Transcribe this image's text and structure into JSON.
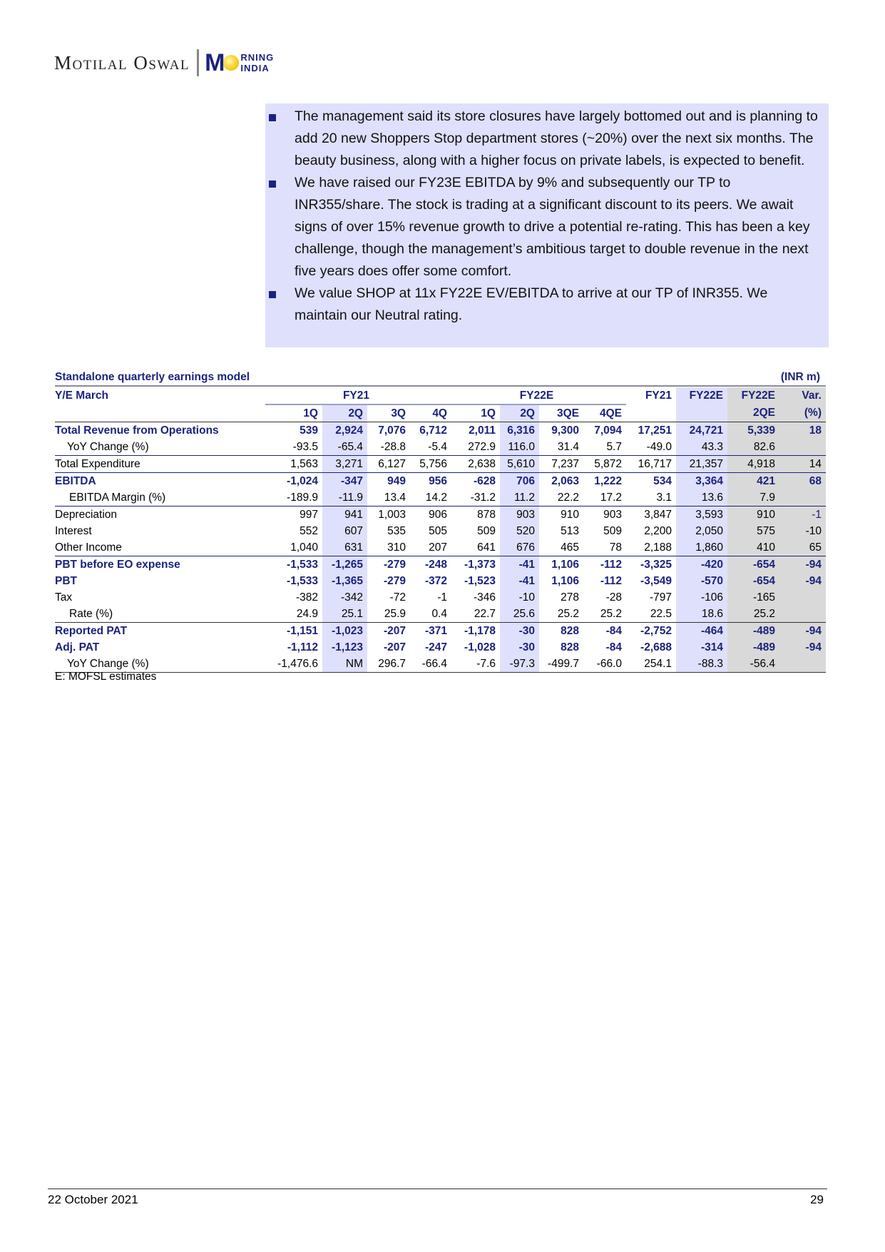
{
  "header": {
    "brand": "Motilal Oswal",
    "logo_main": "M",
    "logo_top": "RNING",
    "logo_bottom": "INDIA"
  },
  "bullets": [
    "The management said its store closures have largely bottomed out and is planning to add 20 new Shoppers Stop department stores (~20%) over the next six months. The beauty business, along with a higher focus on private labels, is expected to benefit.",
    "We have raised our FY23E EBITDA by 9% and subsequently our TP to INR355/share. The stock is trading at a significant discount to its peers. We await signs of over 15% revenue growth to drive a potential re-rating. This has been a key challenge, though the management’s ambitious target to double revenue in the next five years does offer some comfort.",
    "We value SHOP at 11x FY22E EV/EBITDA to arrive at our TP of INR355. We maintain our Neutral rating."
  ],
  "table": {
    "title": "Standalone quarterly earnings model",
    "unit": "(INR m)",
    "header1": [
      "Y/E March",
      "FY21",
      "FY22E",
      "FY21",
      "FY22E",
      "FY22E",
      "Var."
    ],
    "header2": [
      "1Q",
      "2Q",
      "3Q",
      "4Q",
      "1Q",
      "2Q",
      "3QE",
      "4QE",
      "",
      "",
      "2QE",
      "(%)"
    ],
    "rows": [
      {
        "label": "Total Revenue from Operations",
        "values": [
          "539",
          "2,924",
          "7,076",
          "6,712",
          "2,011",
          "6,316",
          "9,300",
          "7,094",
          "17,251",
          "24,721",
          "5,339",
          "18"
        ]
      },
      {
        "label": "YoY Change (%)",
        "values": [
          "-93.5",
          "-65.4",
          "-28.8",
          "-5.4",
          "272.9",
          "116.0",
          "31.4",
          "5.7",
          "-49.0",
          "43.3",
          "82.6",
          ""
        ]
      },
      {
        "label": "Total Expenditure",
        "values": [
          "1,563",
          "3,271",
          "6,127",
          "5,756",
          "2,638",
          "5,610",
          "7,237",
          "5,872",
          "16,717",
          "21,357",
          "4,918",
          "14"
        ]
      },
      {
        "label": "EBITDA",
        "values": [
          "-1,024",
          "-347",
          "949",
          "956",
          "-628",
          "706",
          "2,063",
          "1,222",
          "534",
          "3,364",
          "421",
          "68"
        ]
      },
      {
        "label": "EBITDA Margin (%)",
        "values": [
          "-189.9",
          "-11.9",
          "13.4",
          "14.2",
          "-31.2",
          "11.2",
          "22.2",
          "17.2",
          "3.1",
          "13.6",
          "7.9",
          ""
        ]
      },
      {
        "label": "Depreciation",
        "values": [
          "997",
          "941",
          "1,003",
          "906",
          "878",
          "903",
          "910",
          "903",
          "3,847",
          "3,593",
          "910",
          "-1"
        ]
      },
      {
        "label": "Interest",
        "values": [
          "552",
          "607",
          "535",
          "505",
          "509",
          "520",
          "513",
          "509",
          "2,200",
          "2,050",
          "575",
          "-10"
        ]
      },
      {
        "label": "Other Income",
        "values": [
          "1,040",
          "631",
          "310",
          "207",
          "641",
          "676",
          "465",
          "78",
          "2,188",
          "1,860",
          "410",
          "65"
        ]
      },
      {
        "label": "PBT before EO expense",
        "values": [
          "-1,533",
          "-1,265",
          "-279",
          "-248",
          "-1,373",
          "-41",
          "1,106",
          "-112",
          "-3,325",
          "-420",
          "-654",
          "-94"
        ]
      },
      {
        "label": "PBT",
        "values": [
          "-1,533",
          "-1,365",
          "-279",
          "-372",
          "-1,523",
          "-41",
          "1,106",
          "-112",
          "-3,549",
          "-570",
          "-654",
          "-94"
        ]
      },
      {
        "label": "Tax",
        "values": [
          "-382",
          "-342",
          "-72",
          "-1",
          "-346",
          "-10",
          "278",
          "-28",
          "-797",
          "-106",
          "-165",
          ""
        ]
      },
      {
        "label": "Rate (%)",
        "values": [
          "24.9",
          "25.1",
          "25.9",
          "0.4",
          "22.7",
          "25.6",
          "25.2",
          "25.2",
          "22.5",
          "18.6",
          "25.2",
          ""
        ]
      },
      {
        "label": "Reported PAT",
        "values": [
          "-1,151",
          "-1,023",
          "-207",
          "-371",
          "-1,178",
          "-30",
          "828",
          "-84",
          "-2,752",
          "-464",
          "-489",
          "-94"
        ]
      },
      {
        "label": "Adj. PAT",
        "values": [
          "-1,112",
          "-1,123",
          "-207",
          "-247",
          "-1,028",
          "-30",
          "828",
          "-84",
          "-2,688",
          "-314",
          "-489",
          "-94"
        ]
      },
      {
        "label": "YoY Change (%)",
        "values": [
          "-1,476.6",
          "NM",
          "296.7",
          "-66.4",
          "-7.6",
          "-97.3",
          "-499.7",
          "-66.0",
          "254.1",
          "-88.3",
          "-56.4",
          ""
        ]
      }
    ],
    "source": "E: MOFSL estimates"
  },
  "footer": {
    "date": "22 October 2021",
    "page": "29"
  },
  "colors": {
    "navy": "#1a237e",
    "highlight": "#dfe0fb",
    "gray": "#d9d9d9"
  }
}
